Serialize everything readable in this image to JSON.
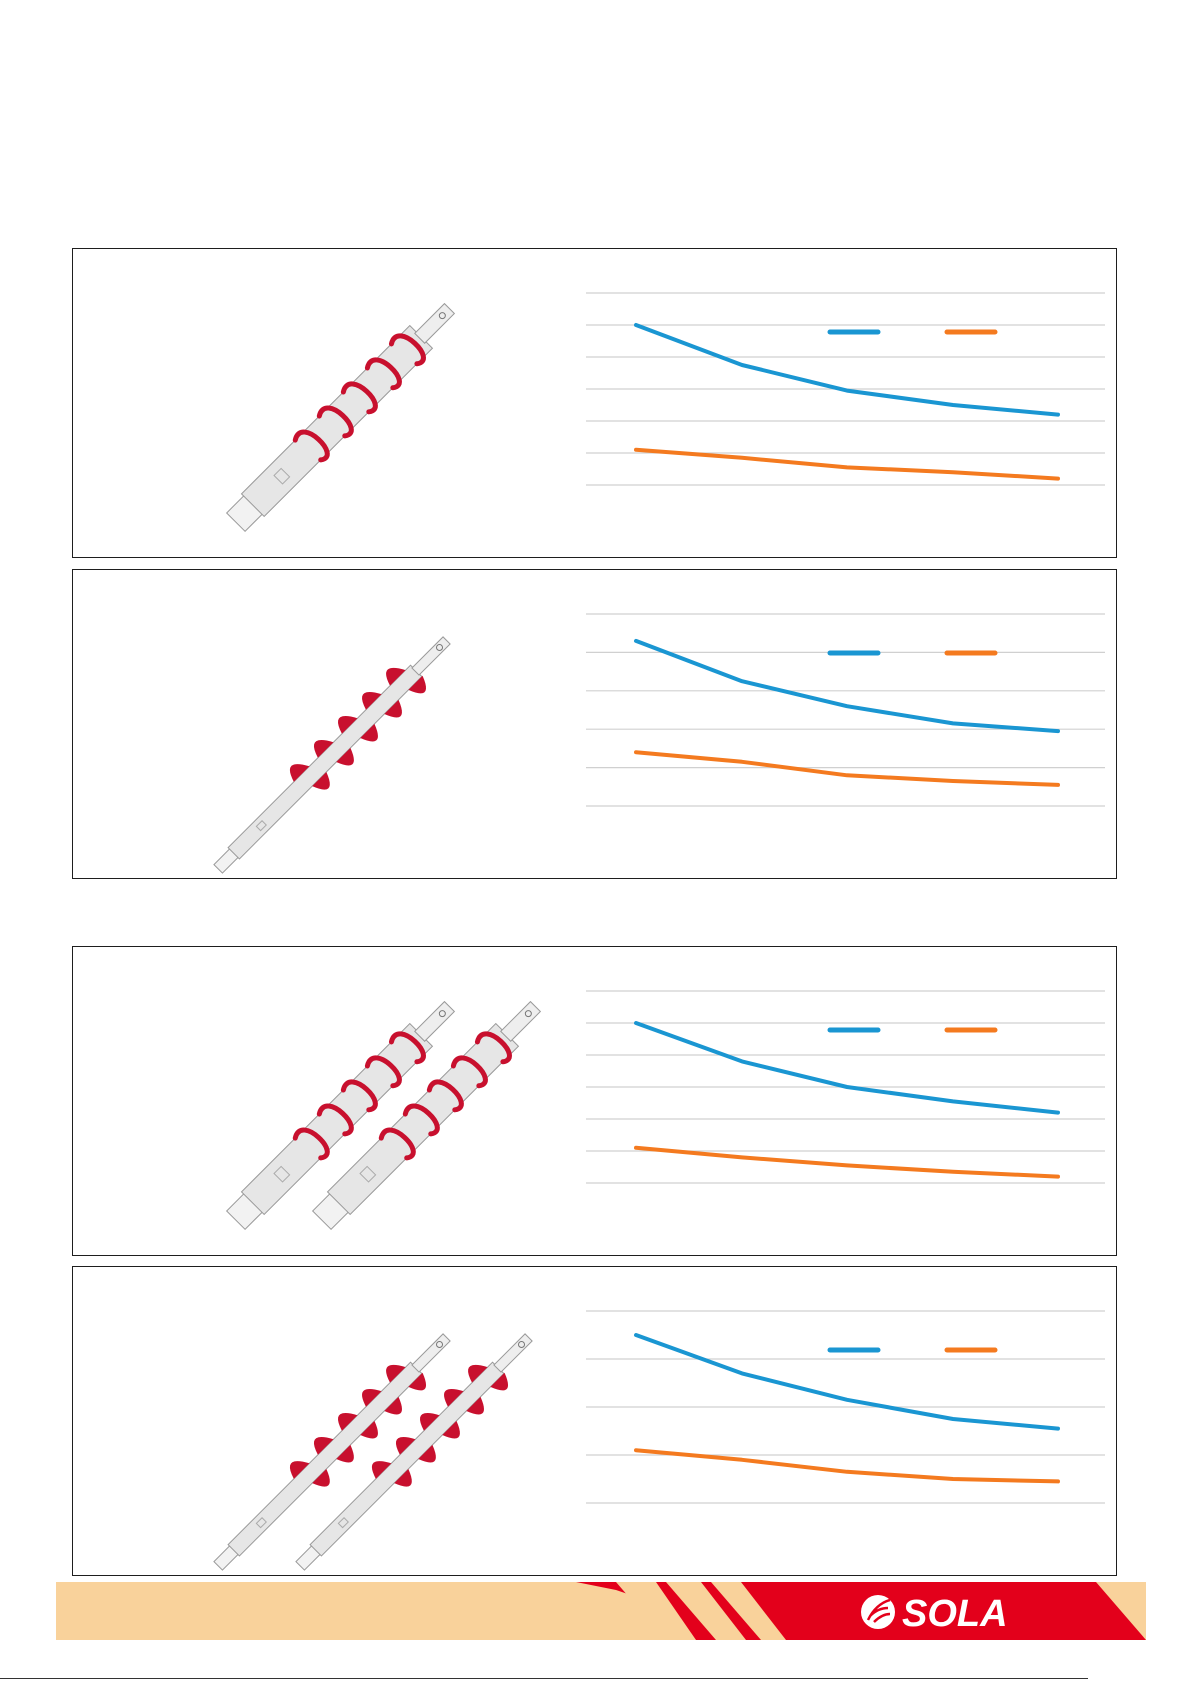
{
  "colors": {
    "series_blue": "#1a96d2",
    "series_orange": "#f47a1f",
    "flight_red": "#c8102e",
    "shaft_grey": "#e6e6e6",
    "gridline": "#d0d0d0",
    "footer_tan": "#f9d29b",
    "footer_red": "#e3001b"
  },
  "brand": {
    "logo_text": "SOLA"
  },
  "panels": [
    {
      "id": "panel-1",
      "auger_type": "spiral-thin",
      "auger_count": 1
    },
    {
      "id": "panel-2",
      "auger_type": "blade-flights",
      "auger_count": 1
    },
    {
      "id": "panel-3",
      "auger_type": "spiral-thin",
      "auger_count": 2
    },
    {
      "id": "panel-4",
      "auger_type": "blade-flights",
      "auger_count": 2
    }
  ],
  "chart_data": [
    {
      "type": "line",
      "gridlines": 7,
      "legend": "top-right",
      "x": [
        1,
        2,
        3,
        4,
        5
      ],
      "series": [
        {
          "color": "#1a96d2",
          "values": [
            5.0,
            3.75,
            2.95,
            2.5,
            2.2
          ]
        },
        {
          "color": "#f47a1f",
          "values": [
            1.1,
            0.85,
            0.55,
            0.4,
            0.2
          ]
        }
      ],
      "ylim": [
        0,
        6
      ]
    },
    {
      "type": "line",
      "gridlines": 6,
      "legend": "top-right",
      "x": [
        1,
        2,
        3,
        4,
        5
      ],
      "series": [
        {
          "color": "#1a96d2",
          "values": [
            4.3,
            3.25,
            2.6,
            2.15,
            1.95
          ]
        },
        {
          "color": "#f47a1f",
          "values": [
            1.4,
            1.15,
            0.8,
            0.65,
            0.55
          ]
        }
      ],
      "ylim": [
        0,
        5
      ]
    },
    {
      "type": "line",
      "gridlines": 7,
      "legend": "top-right",
      "x": [
        1,
        2,
        3,
        4,
        5
      ],
      "series": [
        {
          "color": "#1a96d2",
          "values": [
            5.0,
            3.8,
            3.0,
            2.55,
            2.2
          ]
        },
        {
          "color": "#f47a1f",
          "values": [
            1.1,
            0.8,
            0.55,
            0.35,
            0.2
          ]
        }
      ],
      "ylim": [
        0,
        6
      ]
    },
    {
      "type": "line",
      "gridlines": 5,
      "legend": "top-right",
      "x": [
        1,
        2,
        3,
        4,
        5
      ],
      "series": [
        {
          "color": "#1a96d2",
          "values": [
            3.5,
            2.7,
            2.15,
            1.75,
            1.55
          ]
        },
        {
          "color": "#f47a1f",
          "values": [
            1.1,
            0.9,
            0.65,
            0.5,
            0.45
          ]
        }
      ],
      "ylim": [
        0,
        4
      ]
    }
  ]
}
